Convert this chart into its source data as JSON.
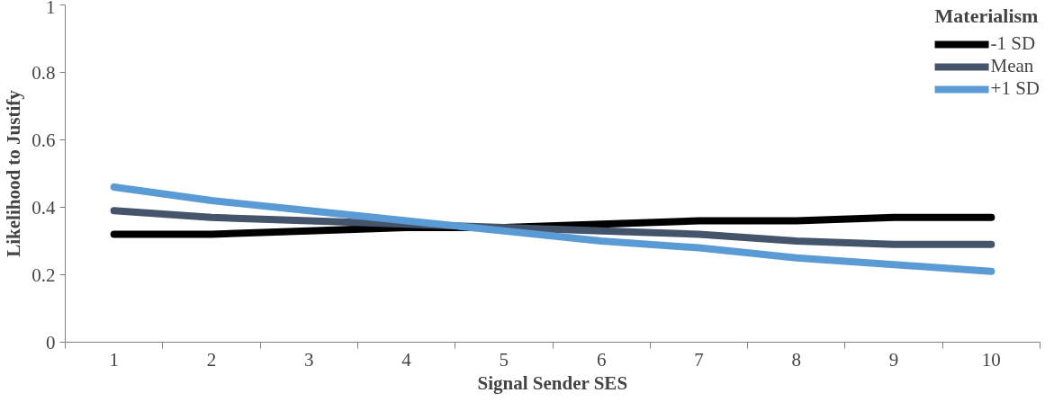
{
  "chart_data": {
    "type": "line",
    "xlabel": "Signal Sender SES",
    "ylabel": "Likelihood to Justify",
    "legend_title": "Materialism",
    "categories": [
      "1",
      "2",
      "3",
      "4",
      "5",
      "6",
      "7",
      "8",
      "9",
      "10"
    ],
    "series": [
      {
        "name": "-1 SD",
        "color": "#000000",
        "values": [
          0.32,
          0.32,
          0.33,
          0.34,
          0.34,
          0.35,
          0.36,
          0.36,
          0.37,
          0.37
        ]
      },
      {
        "name": "Mean",
        "color": "#44546a",
        "values": [
          0.39,
          0.37,
          0.36,
          0.35,
          0.34,
          0.33,
          0.32,
          0.3,
          0.29,
          0.29
        ]
      },
      {
        "name": "+1 SD",
        "color": "#5b9bd5",
        "values": [
          0.46,
          0.42,
          0.39,
          0.36,
          0.33,
          0.3,
          0.28,
          0.25,
          0.23,
          0.21
        ]
      }
    ],
    "ylim": [
      0,
      1
    ],
    "yticks": [
      0,
      0.2,
      0.4,
      0.6,
      0.8,
      1
    ],
    "grid": false,
    "legend": "top right",
    "marker": "none",
    "line_style": "solid"
  }
}
